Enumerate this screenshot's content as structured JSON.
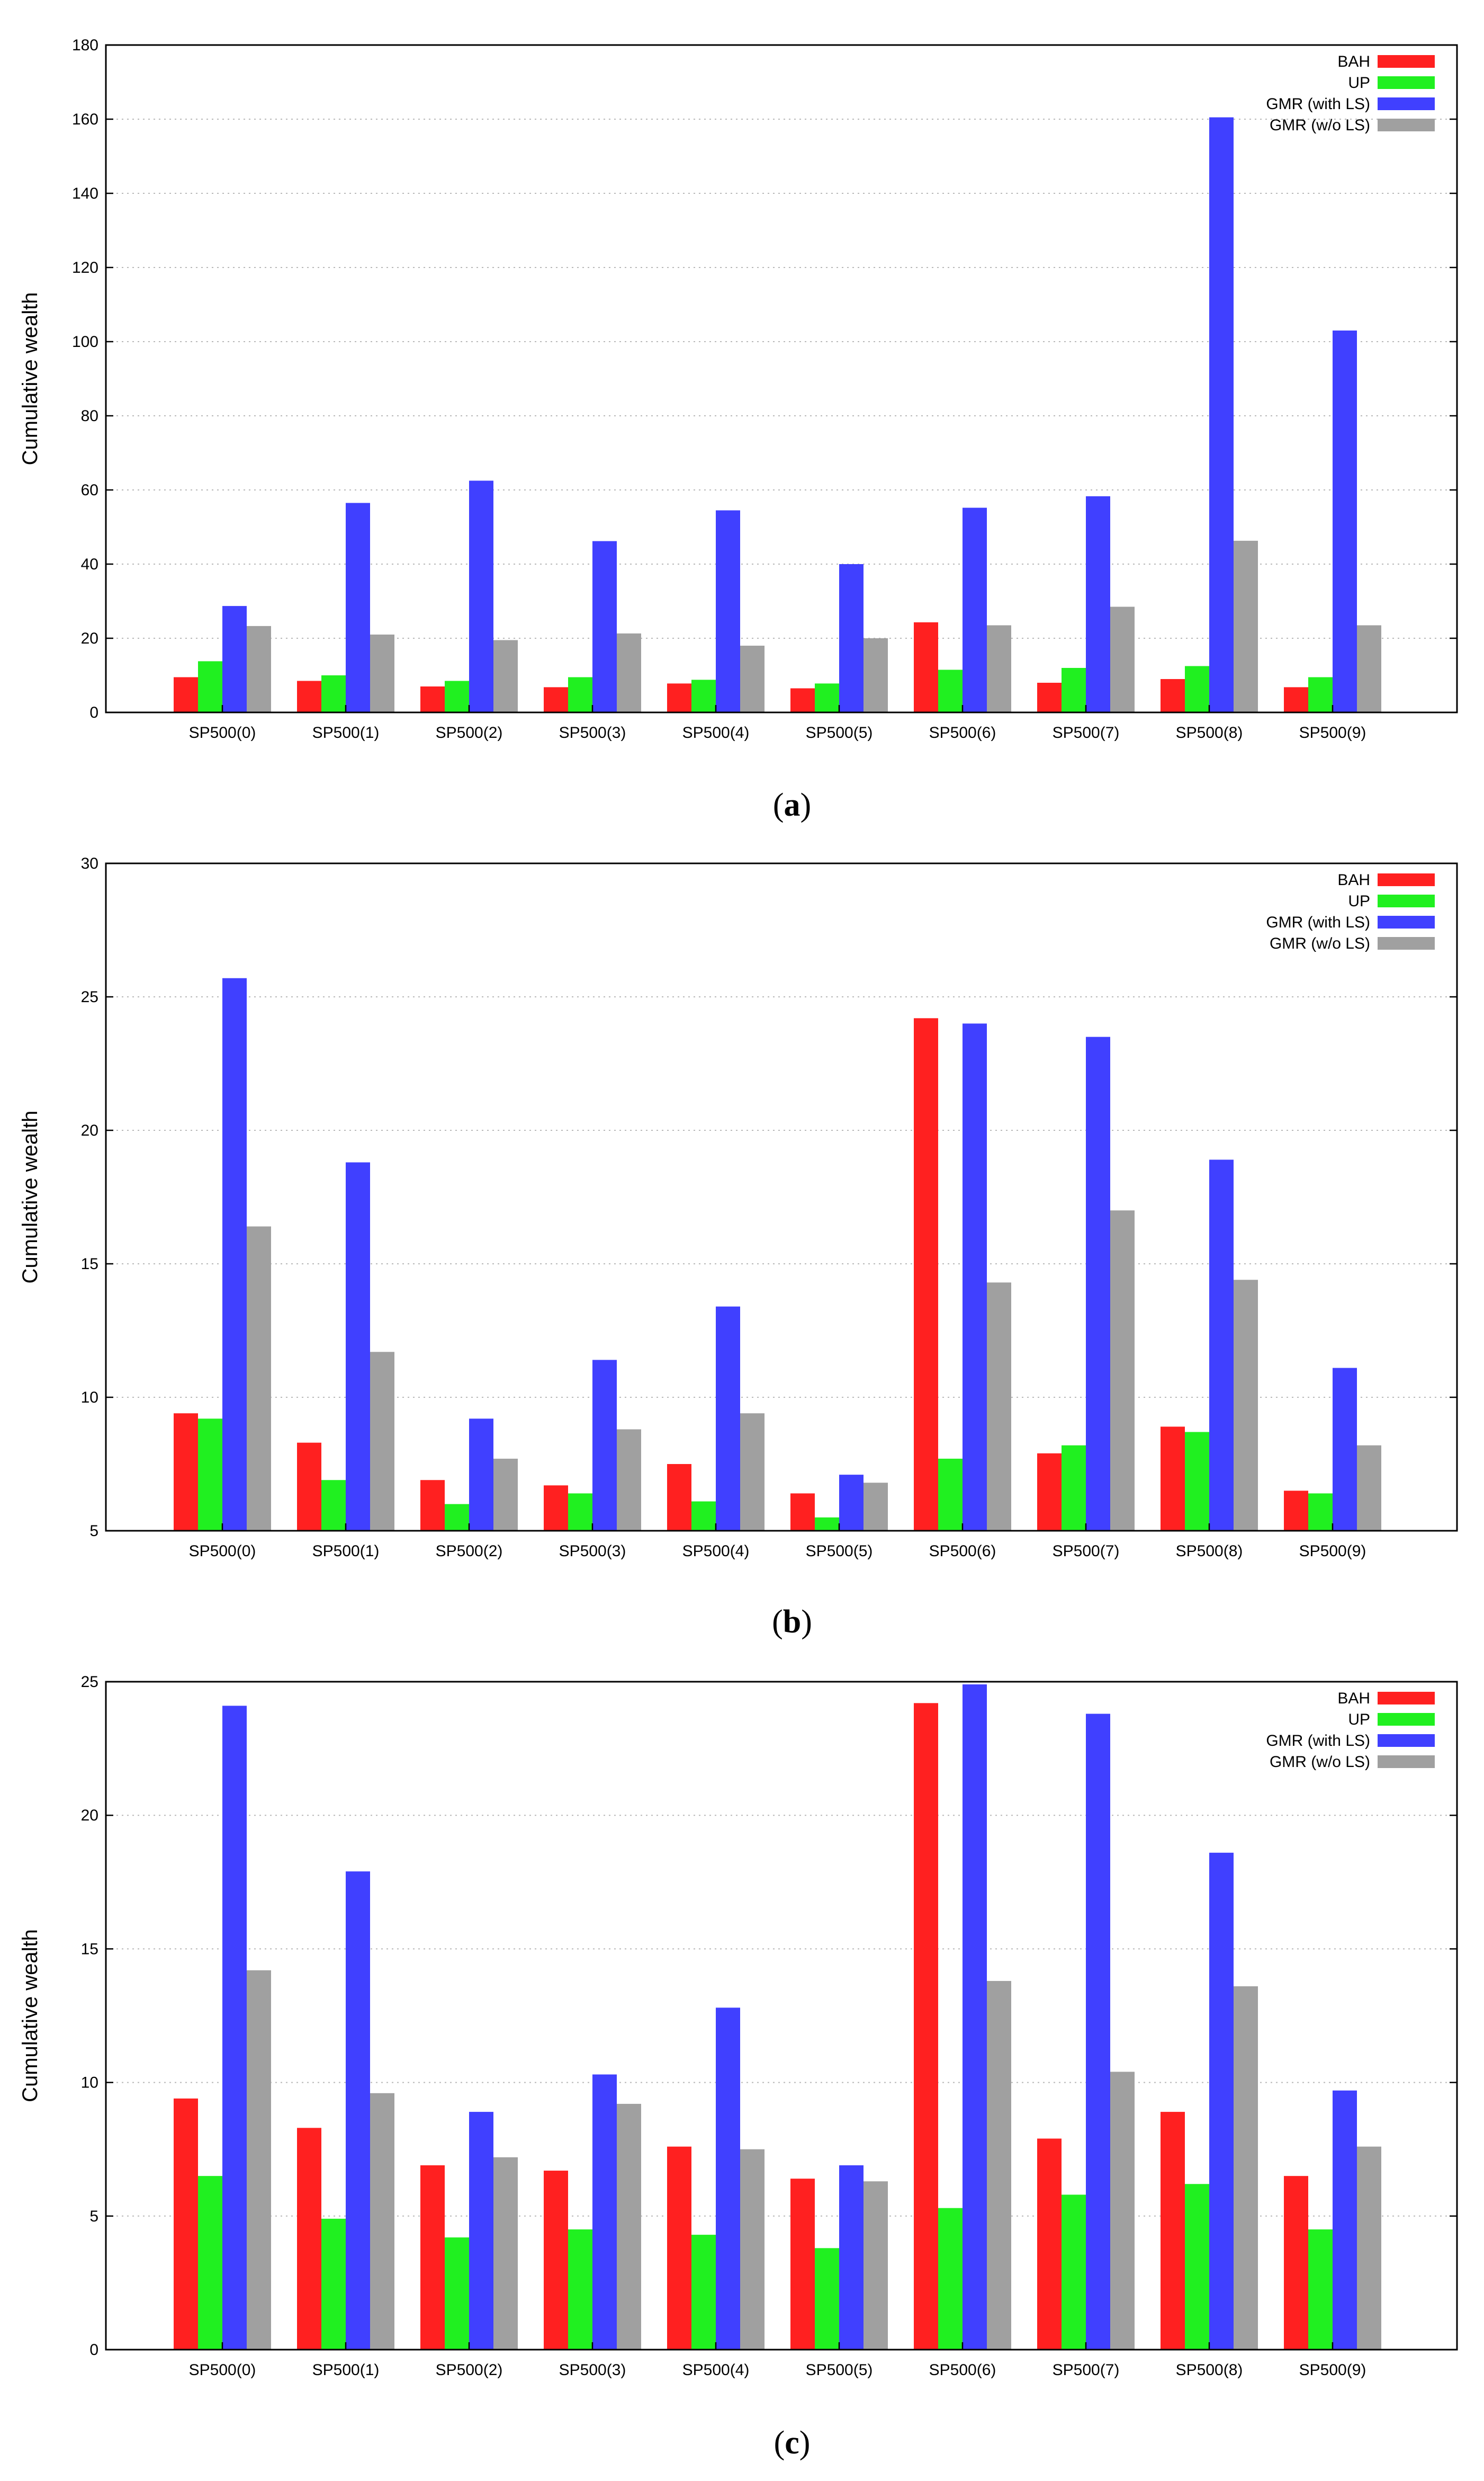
{
  "colors": {
    "BAH": "#ff2020",
    "UP": "#20f020",
    "GMR (with LS)": "#4040ff",
    "GMR (w/o LS)": "#a0a0a0"
  },
  "chart_data": [
    {
      "type": "bar",
      "id": "a",
      "caption": {
        "open": "(",
        "letter": "a",
        "close": ")"
      },
      "ylabel": "Cumulative wealth",
      "ylim": [
        0,
        180
      ],
      "yticks": [
        0,
        20,
        40,
        60,
        80,
        100,
        120,
        140,
        160,
        180
      ],
      "categories": [
        "SP500(0)",
        "SP500(1)",
        "SP500(2)",
        "SP500(3)",
        "SP500(4)",
        "SP500(5)",
        "SP500(6)",
        "SP500(7)",
        "SP500(8)",
        "SP500(9)"
      ],
      "legend": "top-right",
      "series": [
        {
          "name": "BAH",
          "values": [
            9.5,
            8.5,
            7.0,
            6.8,
            7.8,
            6.5,
            24.3,
            8.0,
            9.0,
            6.8
          ]
        },
        {
          "name": "UP",
          "values": [
            13.8,
            10.0,
            8.5,
            9.5,
            8.8,
            7.8,
            11.5,
            12.0,
            12.5,
            9.5
          ]
        },
        {
          "name": "GMR (with LS)",
          "values": [
            28.7,
            56.5,
            62.5,
            46.2,
            54.5,
            40.0,
            55.2,
            58.3,
            160.5,
            103.0
          ]
        },
        {
          "name": "GMR (w/o LS)",
          "values": [
            23.3,
            21.0,
            19.5,
            21.3,
            18.0,
            20.0,
            23.5,
            28.5,
            46.3,
            23.5
          ]
        }
      ]
    },
    {
      "type": "bar",
      "id": "b",
      "caption": {
        "open": "(",
        "letter": "b",
        "close": ")"
      },
      "ylabel": "Cumulative wealth",
      "ylim": [
        5,
        30
      ],
      "yticks": [
        5,
        10,
        15,
        20,
        25,
        30
      ],
      "categories": [
        "SP500(0)",
        "SP500(1)",
        "SP500(2)",
        "SP500(3)",
        "SP500(4)",
        "SP500(5)",
        "SP500(6)",
        "SP500(7)",
        "SP500(8)",
        "SP500(9)"
      ],
      "legend": "top-right",
      "series": [
        {
          "name": "BAH",
          "values": [
            9.4,
            8.3,
            6.9,
            6.7,
            7.5,
            6.4,
            24.2,
            7.9,
            8.9,
            6.5
          ]
        },
        {
          "name": "UP",
          "values": [
            9.2,
            6.9,
            6.0,
            6.4,
            6.1,
            5.5,
            7.7,
            8.2,
            8.7,
            6.4
          ]
        },
        {
          "name": "GMR (with LS)",
          "values": [
            25.7,
            18.8,
            9.2,
            11.4,
            13.4,
            7.1,
            24.0,
            23.5,
            18.9,
            11.1
          ]
        },
        {
          "name": "GMR (w/o LS)",
          "values": [
            16.4,
            11.7,
            7.7,
            8.8,
            9.4,
            6.8,
            14.3,
            17.0,
            14.4,
            8.2
          ]
        }
      ]
    },
    {
      "type": "bar",
      "id": "c",
      "caption": {
        "open": "(",
        "letter": "c",
        "close": ")"
      },
      "ylabel": "Cumulative wealth",
      "ylim": [
        0,
        25
      ],
      "yticks": [
        0,
        5,
        10,
        15,
        20,
        25
      ],
      "categories": [
        "SP500(0)",
        "SP500(1)",
        "SP500(2)",
        "SP500(3)",
        "SP500(4)",
        "SP500(5)",
        "SP500(6)",
        "SP500(7)",
        "SP500(8)",
        "SP500(9)"
      ],
      "legend": "top-right",
      "series": [
        {
          "name": "BAH",
          "values": [
            9.4,
            8.3,
            6.9,
            6.7,
            7.6,
            6.4,
            24.2,
            7.9,
            8.9,
            6.5
          ]
        },
        {
          "name": "UP",
          "values": [
            6.5,
            4.9,
            4.2,
            4.5,
            4.3,
            3.8,
            5.3,
            5.8,
            6.2,
            4.5
          ]
        },
        {
          "name": "GMR (with LS)",
          "values": [
            24.1,
            17.9,
            8.9,
            10.3,
            12.8,
            6.9,
            24.9,
            23.8,
            18.6,
            9.7
          ]
        },
        {
          "name": "GMR (w/o LS)",
          "values": [
            14.2,
            9.6,
            7.2,
            9.2,
            7.5,
            6.3,
            13.8,
            10.4,
            13.6,
            7.6
          ]
        }
      ]
    }
  ]
}
